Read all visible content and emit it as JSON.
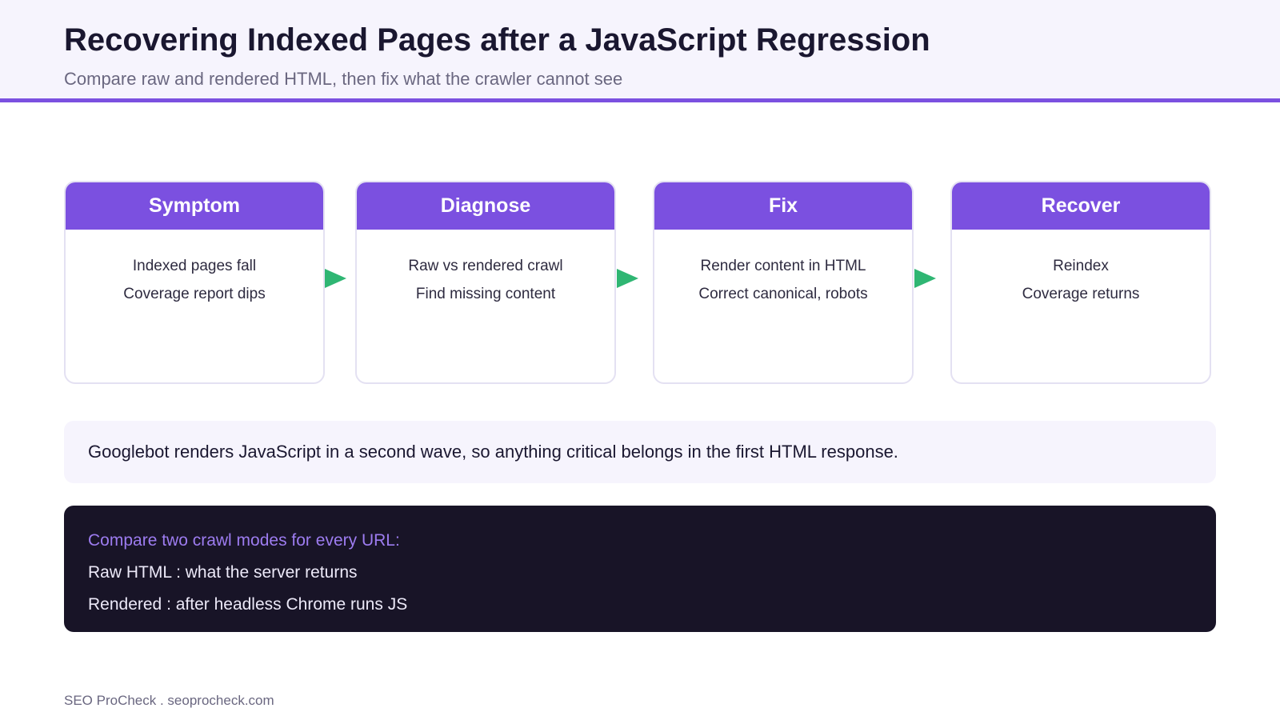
{
  "header": {
    "title": "Recovering Indexed Pages after a JavaScript Regression",
    "subtitle": "Compare raw and rendered HTML, then fix what the crawler cannot see"
  },
  "steps": [
    {
      "label": "Symptom",
      "lines": [
        "Indexed pages fall",
        "Coverage report dips"
      ]
    },
    {
      "label": "Diagnose",
      "lines": [
        "Raw vs rendered crawl",
        "Find missing content"
      ]
    },
    {
      "label": "Fix",
      "lines": [
        "Render content in HTML",
        "Correct canonical, robots"
      ]
    },
    {
      "label": "Recover",
      "lines": [
        "Reindex",
        "Coverage returns"
      ]
    }
  ],
  "note": "Googlebot renders JavaScript in a second wave, so anything critical belongs in the first HTML response.",
  "code": {
    "heading": "Compare two crawl modes for every URL:",
    "lines": [
      "Raw HTML : what the server returns",
      "Rendered : after headless Chrome runs JS"
    ]
  },
  "footer": "SEO ProCheck . seoprocheck.com",
  "colors": {
    "accent": "#7b50e0",
    "arrow": "#2fb673",
    "panel_bg": "#f6f4fd",
    "code_bg": "#181427"
  }
}
